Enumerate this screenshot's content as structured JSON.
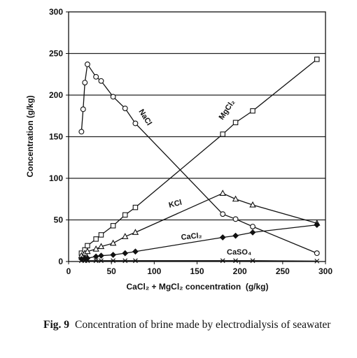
{
  "chart_data": {
    "type": "line",
    "xlabel": "CaCl₂ + MgCl₂ concentration  (g/kg)",
    "ylabel": "Concentration (g/kg)",
    "xlim": [
      0,
      300
    ],
    "ylim": [
      0,
      300
    ],
    "xticks": [
      0,
      50,
      100,
      150,
      200,
      250,
      300
    ],
    "yticks": [
      0,
      50,
      100,
      150,
      200,
      250,
      300
    ],
    "grid": "horizontal",
    "series": [
      {
        "name": "NaCl",
        "marker": "circle",
        "points": [
          [
            15,
            156
          ],
          [
            17,
            183
          ],
          [
            19,
            215
          ],
          [
            22,
            237
          ],
          [
            32,
            222
          ],
          [
            38,
            217
          ],
          [
            52,
            198
          ],
          [
            66,
            184
          ],
          [
            78,
            166
          ],
          [
            180,
            57
          ],
          [
            195,
            51
          ],
          [
            215,
            42
          ],
          [
            290,
            10
          ]
        ]
      },
      {
        "name": "MgCl₂",
        "marker": "square",
        "points": [
          [
            15,
            10
          ],
          [
            19,
            14
          ],
          [
            22,
            19
          ],
          [
            32,
            27
          ],
          [
            38,
            32
          ],
          [
            52,
            43
          ],
          [
            66,
            56
          ],
          [
            78,
            65
          ],
          [
            180,
            153
          ],
          [
            195,
            167
          ],
          [
            215,
            181
          ],
          [
            290,
            243
          ]
        ]
      },
      {
        "name": "KCl",
        "marker": "triangle",
        "points": [
          [
            15,
            7
          ],
          [
            19,
            10
          ],
          [
            22,
            12
          ],
          [
            32,
            15
          ],
          [
            38,
            18
          ],
          [
            52,
            22
          ],
          [
            66,
            30
          ],
          [
            78,
            35
          ],
          [
            180,
            82
          ],
          [
            195,
            75
          ],
          [
            215,
            68
          ],
          [
            290,
            46
          ]
        ]
      },
      {
        "name": "CaCl₂",
        "marker": "diamond",
        "points": [
          [
            15,
            3
          ],
          [
            19,
            4
          ],
          [
            22,
            4
          ],
          [
            32,
            6
          ],
          [
            38,
            7
          ],
          [
            52,
            8
          ],
          [
            66,
            10
          ],
          [
            78,
            12
          ],
          [
            180,
            29
          ],
          [
            195,
            31
          ],
          [
            215,
            35
          ],
          [
            290,
            44
          ]
        ]
      },
      {
        "name": "CaSO₄",
        "marker": "cross",
        "points": [
          [
            15,
            1
          ],
          [
            19,
            1
          ],
          [
            22,
            1
          ],
          [
            32,
            1
          ],
          [
            38,
            1
          ],
          [
            52,
            1
          ],
          [
            66,
            1
          ],
          [
            78,
            1
          ],
          [
            180,
            1
          ],
          [
            195,
            1
          ],
          [
            215,
            1
          ],
          [
            290,
            0.5
          ]
        ]
      }
    ]
  },
  "caption": {
    "fig_label": "Fig. 9",
    "text": "Concentration of brine made by electrodialysis of seawater"
  }
}
